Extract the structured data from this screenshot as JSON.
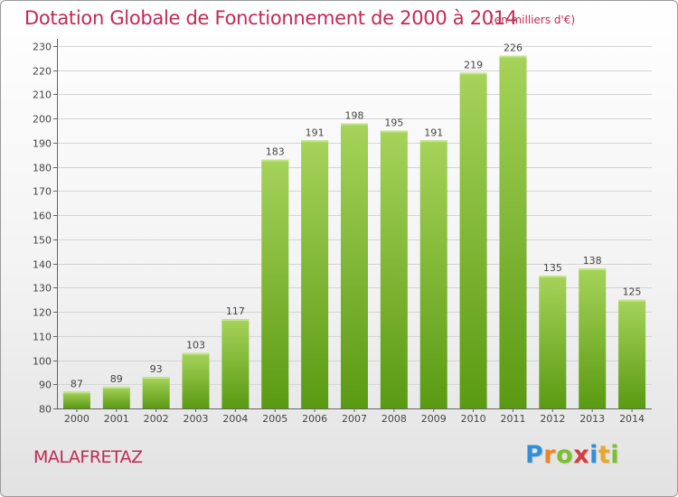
{
  "title": "Dotation Globale de Fonctionnement de 2000 à 2014",
  "unit_note": "(en milliers d'€)",
  "commune": "MALAFRETAZ",
  "logo": {
    "text": "Proxiti",
    "letters": [
      "P",
      "r",
      "o",
      "x",
      "i",
      "t",
      "i"
    ]
  },
  "colors": {
    "title": "#c22a54",
    "bar_light": "#a6d35a",
    "bar_dark": "#5a9a12",
    "axis": "#555555"
  },
  "chart_data": {
    "type": "bar",
    "title": "Dotation Globale de Fonctionnement de 2000 à 2014",
    "unit": "(en milliers d'€)",
    "categories": [
      "2000",
      "2001",
      "2002",
      "2003",
      "2004",
      "2005",
      "2006",
      "2007",
      "2008",
      "2009",
      "2010",
      "2011",
      "2012",
      "2013",
      "2014"
    ],
    "values": [
      87,
      89,
      93,
      103,
      117,
      183,
      191,
      198,
      195,
      191,
      219,
      226,
      135,
      138,
      125
    ],
    "ylim": [
      80,
      230
    ],
    "yticks": [
      80,
      90,
      100,
      110,
      120,
      130,
      140,
      150,
      160,
      170,
      180,
      190,
      200,
      210,
      220,
      230
    ],
    "grid": true
  }
}
